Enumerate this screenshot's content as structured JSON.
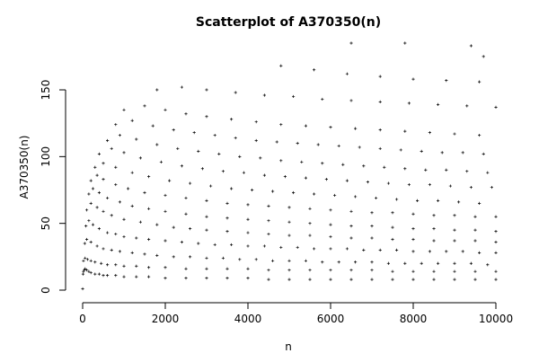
{
  "chart_data": {
    "type": "scatter",
    "title": "Scatterplot of A370350(n)",
    "xlabel": "n",
    "ylabel": "A370350(n)",
    "xlim": [
      0,
      10000
    ],
    "ylim": [
      0,
      185
    ],
    "x_ticks": [
      0,
      2000,
      4000,
      6000,
      8000,
      10000
    ],
    "y_ticks": [
      0,
      50,
      100,
      150
    ],
    "grid": false,
    "legend": "none",
    "marker": "+",
    "color": "#000000",
    "series": [
      {
        "x": [
          1,
          10,
          20,
          40,
          60,
          100,
          150,
          200,
          300,
          400,
          500,
          600,
          800,
          1000,
          1300,
          1600,
          2000,
          2500,
          3000,
          3500,
          4000,
          4500,
          5000,
          5500,
          6000,
          6500,
          7000,
          7500,
          8000,
          8500,
          9000,
          9500,
          10000,
          20,
          60,
          120,
          200,
          300,
          450,
          600,
          800,
          1000,
          1300,
          1600,
          2000,
          2500,
          3000,
          3500,
          4000,
          4500,
          5000,
          5500,
          6000,
          6500,
          7000,
          7500,
          8000,
          8500,
          9000,
          9500,
          10000,
          50,
          100,
          200,
          350,
          500,
          700,
          900,
          1200,
          1500,
          1800,
          2200,
          2600,
          3000,
          3400,
          3800,
          4200,
          4600,
          5000,
          5400,
          5800,
          6200,
          6600,
          7000,
          7400,
          7800,
          8200,
          8600,
          9000,
          9400,
          9800,
          80,
          150,
          250,
          400,
          600,
          800,
          1000,
          1300,
          1600,
          2000,
          2400,
          2800,
          3200,
          3600,
          4000,
          4400,
          4800,
          5200,
          5600,
          6000,
          6400,
          6800,
          7200,
          7600,
          8000,
          8400,
          8800,
          9200,
          9600,
          10000,
          100,
          200,
          350,
          500,
          700,
          1000,
          1400,
          1800,
          2200,
          2600,
          3000,
          3500,
          4000,
          4500,
          5000,
          5500,
          6000,
          6500,
          7000,
          7500,
          8000,
          8500,
          9000,
          9500,
          10000,
          150,
          250,
          400,
          600,
          900,
          1200,
          1600,
          2000,
          2500,
          3000,
          3500,
          4000,
          4500,
          5000,
          5500,
          6000,
          6500,
          7000,
          7500,
          8000,
          8500,
          9000,
          9500,
          10000,
          200,
          350,
          500,
          800,
          1100,
          1500,
          2000,
          2500,
          3000,
          3500,
          4000,
          4500,
          5000,
          5500,
          6000,
          6500,
          7000,
          7500,
          8000,
          8500,
          9000,
          9500,
          10000,
          300,
          500,
          800,
          1200,
          1600,
          2100,
          2600,
          3100,
          3600,
          4100,
          4600,
          5100,
          5600,
          6100,
          6600,
          7100,
          7600,
          8100,
          8600,
          9100,
          9600,
          400,
          700,
          1000,
          1400,
          1900,
          2400,
          2900,
          3400,
          3900,
          4400,
          4900,
          5400,
          5900,
          6400,
          6900,
          7400,
          7900,
          8400,
          8900,
          9400,
          9900,
          600,
          900,
          1300,
          1800,
          2300,
          2800,
          3300,
          3800,
          4300,
          4800,
          5300,
          5800,
          6300,
          6800,
          7300,
          7800,
          8300,
          8800,
          9300,
          9800,
          800,
          1200,
          1700,
          2200,
          2700,
          3200,
          3700,
          4200,
          4700,
          5200,
          5700,
          6200,
          6700,
          7200,
          7700,
          8200,
          8700,
          9200,
          9700,
          1000,
          1500,
          2000,
          2500,
          3000,
          3600,
          4200,
          4800,
          5400,
          6000,
          6600,
          7200,
          7800,
          8400,
          9000,
          9600,
          1800,
          2400,
          3000,
          3700,
          4400,
          5100,
          5800,
          6500,
          7200,
          7900,
          8600,
          9300,
          10000,
          4800,
          5600,
          6400,
          7200,
          8000,
          8800,
          9600,
          6500,
          7800,
          9400,
          9700
        ],
        "y": [
          1,
          12,
          14,
          15,
          16,
          15,
          14,
          13,
          12,
          12,
          11,
          11,
          11,
          10,
          10,
          10,
          9,
          9,
          9,
          9,
          9,
          8,
          8,
          8,
          8,
          8,
          8,
          8,
          8,
          8,
          8,
          8,
          8,
          22,
          24,
          23,
          22,
          21,
          20,
          19,
          19,
          18,
          18,
          17,
          17,
          16,
          16,
          16,
          16,
          15,
          15,
          15,
          15,
          15,
          15,
          14,
          14,
          14,
          14,
          14,
          14,
          35,
          38,
          36,
          33,
          31,
          30,
          29,
          28,
          27,
          26,
          25,
          25,
          24,
          24,
          23,
          23,
          22,
          22,
          22,
          21,
          21,
          21,
          21,
          20,
          20,
          20,
          20,
          20,
          20,
          19,
          48,
          52,
          49,
          46,
          43,
          42,
          40,
          39,
          38,
          37,
          36,
          35,
          34,
          34,
          33,
          33,
          32,
          32,
          31,
          31,
          31,
          30,
          30,
          30,
          29,
          29,
          29,
          29,
          28,
          28,
          60,
          65,
          62,
          59,
          56,
          53,
          51,
          49,
          47,
          46,
          45,
          44,
          43,
          42,
          41,
          41,
          40,
          39,
          39,
          38,
          38,
          37,
          37,
          37,
          36,
          72,
          76,
          73,
          69,
          66,
          63,
          61,
          59,
          57,
          55,
          54,
          53,
          52,
          51,
          50,
          49,
          48,
          48,
          47,
          46,
          46,
          45,
          45,
          44,
          82,
          86,
          83,
          79,
          76,
          73,
          71,
          69,
          67,
          65,
          64,
          63,
          62,
          61,
          60,
          59,
          58,
          58,
          57,
          56,
          56,
          55,
          55,
          92,
          95,
          92,
          88,
          85,
          82,
          80,
          78,
          76,
          75,
          74,
          73,
          72,
          71,
          70,
          69,
          68,
          67,
          67,
          66,
          65,
          102,
          106,
          103,
          99,
          96,
          93,
          91,
          89,
          88,
          86,
          85,
          84,
          83,
          82,
          81,
          80,
          79,
          79,
          78,
          77,
          77,
          112,
          116,
          113,
          109,
          106,
          104,
          102,
          100,
          99,
          97,
          96,
          95,
          94,
          93,
          92,
          91,
          90,
          90,
          89,
          88,
          124,
          127,
          123,
          120,
          118,
          116,
          114,
          112,
          111,
          110,
          109,
          108,
          107,
          106,
          105,
          104,
          103,
          103,
          102,
          135,
          138,
          135,
          132,
          130,
          128,
          126,
          124,
          123,
          122,
          121,
          120,
          119,
          118,
          117,
          116,
          150,
          152,
          150,
          148,
          146,
          145,
          143,
          142,
          141,
          140,
          139,
          138,
          137,
          168,
          165,
          162,
          160,
          158,
          157,
          156,
          185,
          185,
          183,
          175
        ]
      }
    ]
  }
}
